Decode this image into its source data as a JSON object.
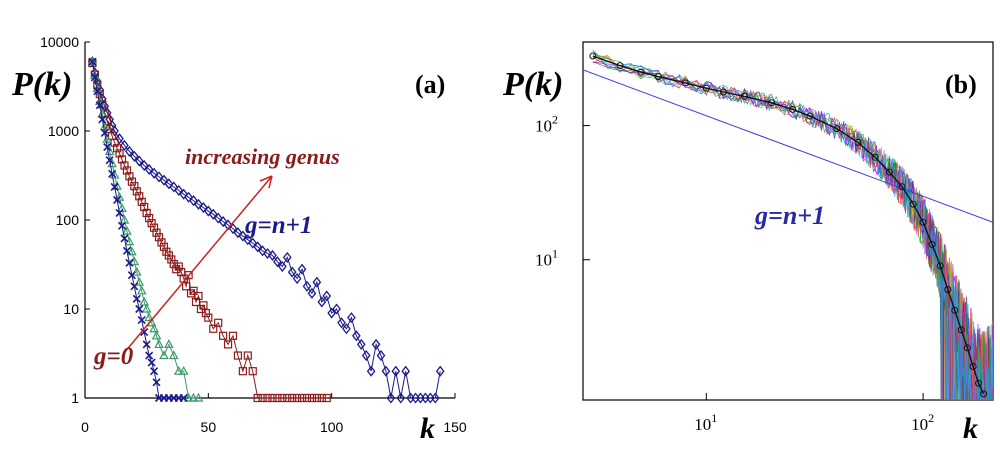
{
  "chart_data": [
    {
      "panel": "(a)",
      "type": "scatter",
      "ylabel": "P(k)",
      "xlabel": "k",
      "xlim": [
        0,
        150
      ],
      "ylim": [
        1,
        10000
      ],
      "yscale": "log",
      "x_ticks": [
        "0",
        "50",
        "100",
        "150"
      ],
      "y_ticks": [
        "1",
        "10",
        "100",
        "1000",
        "10000"
      ],
      "grid": false,
      "annotations": {
        "arrow_label": "increasing genus",
        "top_series_label": "g=n+1",
        "bottom_series_label": "g=0"
      },
      "series": [
        {
          "color": "#1a1a8c",
          "marker": "diamond",
          "points": [
            [
              3,
              6000
            ],
            [
              4,
              4500
            ],
            [
              5,
              3600
            ],
            [
              6,
              2900
            ],
            [
              7,
              2300
            ],
            [
              8,
              1900
            ],
            [
              9,
              1600
            ],
            [
              10,
              1350
            ],
            [
              11,
              1150
            ],
            [
              12,
              1000
            ],
            [
              14,
              820
            ],
            [
              16,
              690
            ],
            [
              18,
              590
            ],
            [
              20,
              520
            ],
            [
              22,
              460
            ],
            [
              24,
              410
            ],
            [
              26,
              370
            ],
            [
              28,
              335
            ],
            [
              30,
              305
            ],
            [
              32,
              280
            ],
            [
              34,
              255
            ],
            [
              36,
              235
            ],
            [
              38,
              215
            ],
            [
              40,
              195
            ],
            [
              42,
              180
            ],
            [
              44,
              165
            ],
            [
              46,
              150
            ],
            [
              48,
              138
            ],
            [
              50,
              126
            ],
            [
              52,
              116
            ],
            [
              54,
              105
            ],
            [
              56,
              96
            ],
            [
              58,
              88
            ],
            [
              60,
              80
            ],
            [
              62,
              72
            ],
            [
              64,
              66
            ],
            [
              66,
              60
            ],
            [
              68,
              55
            ],
            [
              70,
              50
            ],
            [
              72,
              45
            ],
            [
              74,
              42
            ],
            [
              76,
              40
            ],
            [
              78,
              34
            ],
            [
              80,
              30
            ],
            [
              82,
              38
            ],
            [
              84,
              26
            ],
            [
              86,
              22
            ],
            [
              88,
              28
            ],
            [
              90,
              18
            ],
            [
              92,
              15
            ],
            [
              94,
              20
            ],
            [
              96,
              12
            ],
            [
              98,
              14
            ],
            [
              100,
              9
            ],
            [
              102,
              10
            ],
            [
              104,
              7
            ],
            [
              106,
              6
            ],
            [
              108,
              8
            ],
            [
              110,
              5
            ],
            [
              112,
              4
            ],
            [
              114,
              3
            ],
            [
              116,
              2
            ],
            [
              118,
              4
            ],
            [
              120,
              3
            ],
            [
              122,
              2
            ],
            [
              124,
              1
            ],
            [
              126,
              2
            ],
            [
              128,
              1
            ],
            [
              130,
              2
            ],
            [
              132,
              1
            ],
            [
              134,
              1
            ],
            [
              136,
              1
            ],
            [
              138,
              1
            ],
            [
              140,
              1
            ],
            [
              142,
              1
            ],
            [
              144,
              2
            ]
          ]
        },
        {
          "color": "#8b1a1a",
          "marker": "square",
          "points": [
            [
              3,
              5800
            ],
            [
              4,
              4300
            ],
            [
              5,
              3300
            ],
            [
              6,
              2600
            ],
            [
              7,
              2000
            ],
            [
              8,
              1600
            ],
            [
              9,
              1300
            ],
            [
              10,
              1050
            ],
            [
              11,
              880
            ],
            [
              12,
              740
            ],
            [
              13,
              640
            ],
            [
              14,
              560
            ],
            [
              15,
              480
            ],
            [
              16,
              410
            ],
            [
              17,
              360
            ],
            [
              18,
              310
            ],
            [
              19,
              270
            ],
            [
              20,
              240
            ],
            [
              21,
              210
            ],
            [
              22,
              185
            ],
            [
              23,
              160
            ],
            [
              24,
              140
            ],
            [
              25,
              120
            ],
            [
              26,
              105
            ],
            [
              27,
              92
            ],
            [
              28,
              82
            ],
            [
              29,
              72
            ],
            [
              30,
              64
            ],
            [
              31,
              56
            ],
            [
              32,
              50
            ],
            [
              33,
              44
            ],
            [
              34,
              40
            ],
            [
              35,
              36
            ],
            [
              36,
              32
            ],
            [
              37,
              28
            ],
            [
              38,
              30
            ],
            [
              39,
              26
            ],
            [
              40,
              22
            ],
            [
              41,
              18
            ],
            [
              42,
              24
            ],
            [
              43,
              15
            ],
            [
              44,
              16
            ],
            [
              45,
              12
            ],
            [
              46,
              14
            ],
            [
              47,
              10
            ],
            [
              48,
              11
            ],
            [
              49,
              9
            ],
            [
              50,
              8
            ],
            [
              52,
              6
            ],
            [
              54,
              7
            ],
            [
              56,
              5
            ],
            [
              58,
              4
            ],
            [
              60,
              5
            ],
            [
              62,
              3
            ],
            [
              64,
              2
            ],
            [
              66,
              3
            ],
            [
              68,
              2
            ],
            [
              70,
              1
            ],
            [
              72,
              1
            ],
            [
              74,
              1
            ],
            [
              76,
              1
            ],
            [
              78,
              1
            ],
            [
              80,
              1
            ],
            [
              82,
              1
            ],
            [
              84,
              1
            ],
            [
              86,
              1
            ],
            [
              88,
              1
            ],
            [
              90,
              1
            ],
            [
              92,
              1
            ],
            [
              94,
              1
            ],
            [
              96,
              1
            ],
            [
              98,
              1
            ]
          ]
        },
        {
          "color": "#3a9a6a",
          "marker": "triangle",
          "points": [
            [
              3,
              6000
            ],
            [
              4,
              4200
            ],
            [
              5,
              3000
            ],
            [
              6,
              2150
            ],
            [
              7,
              1550
            ],
            [
              8,
              1120
            ],
            [
              9,
              810
            ],
            [
              10,
              590
            ],
            [
              11,
              430
            ],
            [
              12,
              320
            ],
            [
              13,
              240
            ],
            [
              14,
              180
            ],
            [
              15,
              135
            ],
            [
              16,
              100
            ],
            [
              17,
              75
            ],
            [
              18,
              57
            ],
            [
              19,
              44
            ],
            [
              20,
              34
            ],
            [
              21,
              26
            ],
            [
              22,
              20
            ],
            [
              23,
              16
            ],
            [
              24,
              12
            ],
            [
              25,
              10
            ],
            [
              26,
              8
            ],
            [
              27,
              7
            ],
            [
              28,
              6
            ],
            [
              29,
              5
            ],
            [
              30,
              4
            ],
            [
              32,
              3
            ],
            [
              34,
              4
            ],
            [
              36,
              3
            ],
            [
              38,
              2
            ],
            [
              40,
              2
            ],
            [
              42,
              1
            ],
            [
              44,
              1
            ],
            [
              46,
              1
            ]
          ]
        },
        {
          "color": "#1a1a8c",
          "marker": "x",
          "points": [
            [
              3,
              6000
            ],
            [
              4,
              4000
            ],
            [
              5,
              2800
            ],
            [
              6,
              1950
            ],
            [
              7,
              1350
            ],
            [
              8,
              950
            ],
            [
              9,
              660
            ],
            [
              10,
              470
            ],
            [
              11,
              330
            ],
            [
              12,
              235
            ],
            [
              13,
              168
            ],
            [
              14,
              120
            ],
            [
              15,
              86
            ],
            [
              16,
              62
            ],
            [
              17,
              45
            ],
            [
              18,
              33
            ],
            [
              19,
              24
            ],
            [
              20,
              18
            ],
            [
              21,
              13
            ],
            [
              22,
              10
            ],
            [
              23,
              7.5
            ],
            [
              24,
              5.5
            ],
            [
              25,
              4
            ],
            [
              26,
              3
            ],
            [
              27,
              2.5
            ],
            [
              28,
              2
            ],
            [
              29,
              1.5
            ],
            [
              30,
              1
            ],
            [
              32,
              1
            ],
            [
              34,
              1
            ],
            [
              36,
              1
            ],
            [
              38,
              1
            ],
            [
              40,
              1
            ]
          ]
        }
      ]
    },
    {
      "panel": "(b)",
      "type": "line",
      "ylabel": "P(k)",
      "xlabel": "k",
      "xscale": "log",
      "yscale": "log",
      "xlim": [
        2.7,
        210
      ],
      "ylim": [
        0.9,
        420
      ],
      "x_ticks": [
        {
          "base": "10",
          "exp": "1"
        },
        {
          "base": "10",
          "exp": "2"
        }
      ],
      "y_ticks": [
        {
          "base": "10",
          "exp": "1"
        },
        {
          "base": "10",
          "exp": "2"
        }
      ],
      "grid": false,
      "annotations": {
        "series_label": "g=n+1"
      },
      "series": [
        {
          "role": "fit-line",
          "color": "#3a3ad8",
          "points": [
            [
              2.7,
              260
            ],
            [
              210,
              19
            ]
          ]
        },
        {
          "role": "mean-curve",
          "color": "#111111",
          "marker": "circle",
          "points": [
            [
              3,
              330
            ],
            [
              4,
              280
            ],
            [
              5,
              250
            ],
            [
              6,
              232
            ],
            [
              8,
              208
            ],
            [
              10,
              190
            ],
            [
              12,
              178
            ],
            [
              15,
              165
            ],
            [
              20,
              148
            ],
            [
              25,
              132
            ],
            [
              30,
              118
            ],
            [
              40,
              95
            ],
            [
              50,
              75
            ],
            [
              60,
              58
            ],
            [
              70,
              45
            ],
            [
              80,
              35
            ],
            [
              90,
              26
            ],
            [
              100,
              19
            ],
            [
              110,
              13
            ],
            [
              120,
              9
            ],
            [
              130,
              6
            ],
            [
              140,
              4.2
            ],
            [
              150,
              3
            ],
            [
              160,
              2.2
            ],
            [
              170,
              1.6
            ],
            [
              180,
              1.2
            ],
            [
              190,
              1
            ]
          ]
        }
      ],
      "simulation_run_colors": [
        "#ff2222",
        "#22aa22",
        "#2222ff",
        "#ff22ff",
        "#00bbbb",
        "#aaaa00",
        "#ff8800",
        "#8800ff",
        "#444444",
        "#00aa66",
        "#cc3366",
        "#3399ff"
      ]
    }
  ]
}
